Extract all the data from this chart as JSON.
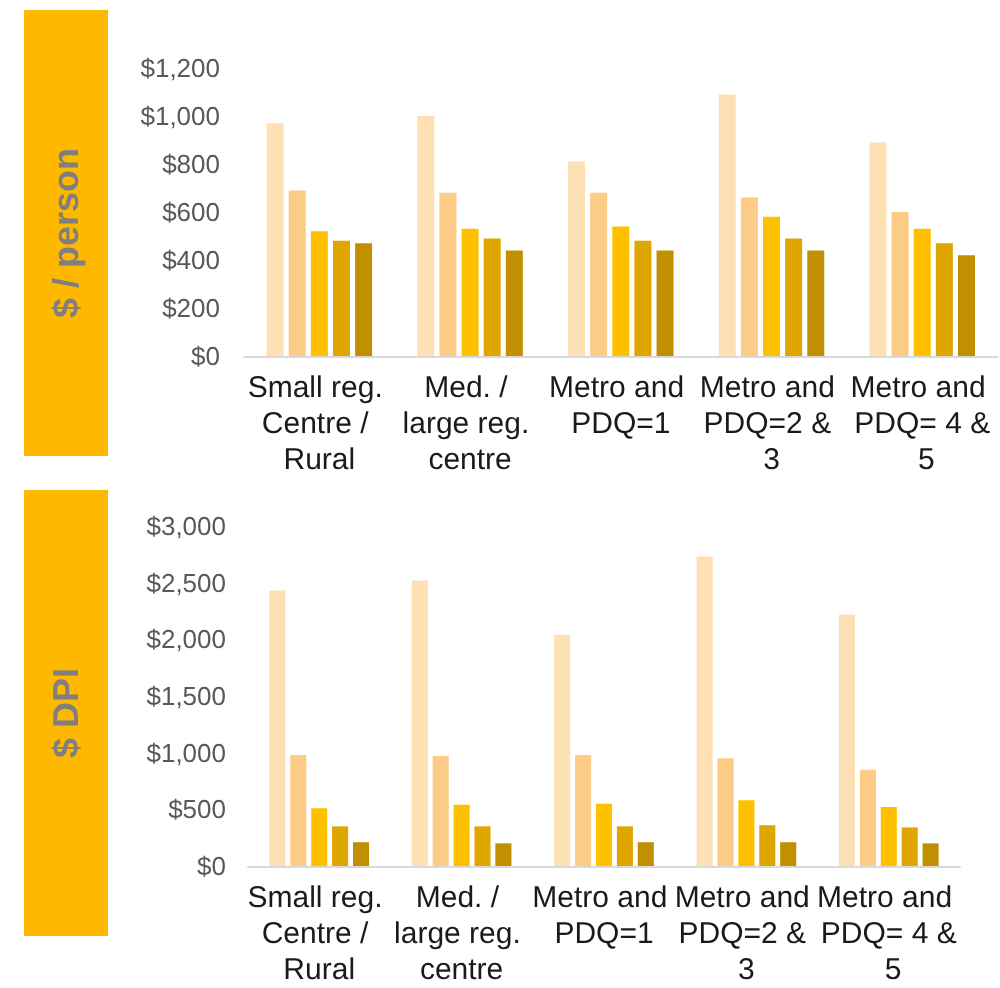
{
  "chart_data": [
    {
      "type": "bar",
      "ylabel": "$ / person",
      "categories": [
        "Small reg. Centre / Rural",
        "Med. / large reg. centre",
        "Metro and PDQ=1",
        "Metro and PDQ=2 & 3",
        "Metro and PDQ= 4 & 5"
      ],
      "series": [
        {
          "color": "#fde0b4",
          "values": [
            970,
            1000,
            810,
            1090,
            890
          ]
        },
        {
          "color": "#fccc87",
          "values": [
            690,
            680,
            680,
            660,
            600
          ]
        },
        {
          "color": "#ffc000",
          "values": [
            520,
            530,
            540,
            580,
            530
          ]
        },
        {
          "color": "#e0a600",
          "values": [
            480,
            490,
            480,
            490,
            470
          ]
        },
        {
          "color": "#c09000",
          "values": [
            470,
            440,
            440,
            440,
            420
          ]
        }
      ],
      "ylim": [
        0,
        1200
      ],
      "yticks": [
        {
          "value": 0,
          "label": "$0"
        },
        {
          "value": 200,
          "label": "$200"
        },
        {
          "value": 400,
          "label": "$400"
        },
        {
          "value": 600,
          "label": "$600"
        },
        {
          "value": 800,
          "label": "$800"
        },
        {
          "value": 1000,
          "label": "$1,000"
        },
        {
          "value": 1200,
          "label": "$1,200"
        }
      ]
    },
    {
      "type": "bar",
      "ylabel": "$ DPI",
      "categories": [
        "Small reg. Centre / Rural",
        "Med. / large reg. centre",
        "Metro and PDQ=1",
        "Metro and PDQ=2 & 3",
        "Metro and PDQ= 4 & 5"
      ],
      "series": [
        {
          "color": "#fde0b4",
          "values": [
            2430,
            2520,
            2040,
            2730,
            2220
          ]
        },
        {
          "color": "#fccc87",
          "values": [
            980,
            970,
            980,
            950,
            850
          ]
        },
        {
          "color": "#ffc000",
          "values": [
            510,
            540,
            550,
            580,
            520
          ]
        },
        {
          "color": "#e0a600",
          "values": [
            350,
            350,
            350,
            360,
            340
          ]
        },
        {
          "color": "#c09000",
          "values": [
            210,
            200,
            210,
            210,
            200
          ]
        }
      ],
      "ylim": [
        0,
        3000
      ],
      "yticks": [
        {
          "value": 0,
          "label": "$0"
        },
        {
          "value": 500,
          "label": "$500"
        },
        {
          "value": 1000,
          "label": "$1,000"
        },
        {
          "value": 1500,
          "label": "$1,500"
        },
        {
          "value": 2000,
          "label": "$2,000"
        },
        {
          "value": 2500,
          "label": "$2,500"
        },
        {
          "value": 3000,
          "label": "$3,000"
        }
      ]
    }
  ]
}
